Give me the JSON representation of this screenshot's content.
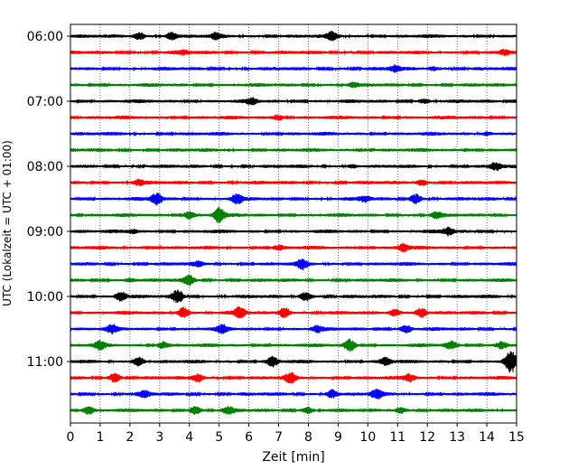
{
  "chart_data": {
    "type": "line",
    "title": "",
    "xlabel": "Zeit  [min]",
    "ylabel": "UTC (Lokalzeit = UTC + 01:00)",
    "xlim": [
      0,
      15
    ],
    "x_ticks": [
      "0",
      "1",
      "2",
      "3",
      "4",
      "5",
      "6",
      "7",
      "8",
      "9",
      "10",
      "11",
      "12",
      "13",
      "14",
      "15"
    ],
    "y_ticks": [
      "06:00",
      "07:00",
      "08:00",
      "09:00",
      "10:00",
      "11:00"
    ],
    "grid": "vertical dotted",
    "trace_interval_minutes": 15,
    "traces": [
      {
        "start": "06:00",
        "color": "#000000",
        "events": [
          {
            "t": 2.3,
            "a": 4
          },
          {
            "t": 3.4,
            "a": 4
          },
          {
            "t": 4.9,
            "a": 3
          },
          {
            "t": 8.8,
            "a": 4
          }
        ]
      },
      {
        "start": "06:15",
        "color": "#ff0000",
        "events": [
          {
            "t": 3.8,
            "a": 2
          },
          {
            "t": 14.6,
            "a": 3
          }
        ]
      },
      {
        "start": "06:30",
        "color": "#0000ff",
        "events": [
          {
            "t": 10.9,
            "a": 3
          },
          {
            "t": 12.2,
            "a": 2
          }
        ]
      },
      {
        "start": "06:45",
        "color": "#008000",
        "events": [
          {
            "t": 9.5,
            "a": 2
          }
        ]
      },
      {
        "start": "07:00",
        "color": "#000000",
        "events": [
          {
            "t": 6.1,
            "a": 3
          },
          {
            "t": 11.9,
            "a": 2
          }
        ]
      },
      {
        "start": "07:15",
        "color": "#ff0000",
        "events": [
          {
            "t": 7.0,
            "a": 3
          }
        ]
      },
      {
        "start": "07:30",
        "color": "#0000ff",
        "events": [
          {
            "t": 14.0,
            "a": 2
          }
        ]
      },
      {
        "start": "07:45",
        "color": "#008000",
        "events": []
      },
      {
        "start": "08:00",
        "color": "#000000",
        "events": [
          {
            "t": 14.3,
            "a": 4
          },
          {
            "t": 9.5,
            "a": 2
          }
        ]
      },
      {
        "start": "08:15",
        "color": "#ff0000",
        "events": [
          {
            "t": 2.3,
            "a": 3
          },
          {
            "t": 11.8,
            "a": 3
          }
        ]
      },
      {
        "start": "08:30",
        "color": "#0000ff",
        "events": [
          {
            "t": 2.9,
            "a": 6
          },
          {
            "t": 5.6,
            "a": 5
          },
          {
            "t": 11.6,
            "a": 5
          },
          {
            "t": 9.9,
            "a": 3
          }
        ]
      },
      {
        "start": "08:45",
        "color": "#008000",
        "events": [
          {
            "t": 4.0,
            "a": 4
          },
          {
            "t": 5.0,
            "a": 8
          },
          {
            "t": 12.3,
            "a": 3
          }
        ]
      },
      {
        "start": "09:00",
        "color": "#000000",
        "events": [
          {
            "t": 12.7,
            "a": 4
          },
          {
            "t": 2.1,
            "a": 2
          }
        ]
      },
      {
        "start": "09:15",
        "color": "#ff0000",
        "events": [
          {
            "t": 11.2,
            "a": 4
          },
          {
            "t": 7.0,
            "a": 2
          }
        ]
      },
      {
        "start": "09:30",
        "color": "#0000ff",
        "events": [
          {
            "t": 7.8,
            "a": 5
          },
          {
            "t": 4.3,
            "a": 2
          }
        ]
      },
      {
        "start": "09:45",
        "color": "#008000",
        "events": [
          {
            "t": 4.0,
            "a": 5
          },
          {
            "t": 2.0,
            "a": 2
          }
        ]
      },
      {
        "start": "10:00",
        "color": "#000000",
        "events": [
          {
            "t": 1.7,
            "a": 5
          },
          {
            "t": 3.6,
            "a": 7
          },
          {
            "t": 7.9,
            "a": 5
          }
        ]
      },
      {
        "start": "10:15",
        "color": "#ff0000",
        "events": [
          {
            "t": 3.8,
            "a": 6
          },
          {
            "t": 5.7,
            "a": 6
          },
          {
            "t": 7.2,
            "a": 6
          },
          {
            "t": 11.8,
            "a": 5
          },
          {
            "t": 10.9,
            "a": 4
          }
        ]
      },
      {
        "start": "10:30",
        "color": "#0000ff",
        "events": [
          {
            "t": 1.4,
            "a": 4
          },
          {
            "t": 5.1,
            "a": 4
          },
          {
            "t": 11.3,
            "a": 4
          },
          {
            "t": 8.3,
            "a": 3
          }
        ]
      },
      {
        "start": "10:45",
        "color": "#008000",
        "events": [
          {
            "t": 1.0,
            "a": 4
          },
          {
            "t": 3.1,
            "a": 4
          },
          {
            "t": 9.4,
            "a": 6
          },
          {
            "t": 12.8,
            "a": 4
          },
          {
            "t": 14.5,
            "a": 4
          }
        ]
      },
      {
        "start": "11:00",
        "color": "#000000",
        "events": [
          {
            "t": 2.3,
            "a": 5
          },
          {
            "t": 6.8,
            "a": 5
          },
          {
            "t": 10.6,
            "a": 4
          },
          {
            "t": 14.8,
            "a": 12
          }
        ]
      },
      {
        "start": "11:15",
        "color": "#ff0000",
        "events": [
          {
            "t": 1.5,
            "a": 5
          },
          {
            "t": 4.3,
            "a": 4
          },
          {
            "t": 7.4,
            "a": 5
          },
          {
            "t": 11.4,
            "a": 4
          }
        ]
      },
      {
        "start": "11:30",
        "color": "#0000ff",
        "events": [
          {
            "t": 8.8,
            "a": 5
          },
          {
            "t": 10.3,
            "a": 5
          },
          {
            "t": 2.5,
            "a": 3
          }
        ]
      },
      {
        "start": "11:45",
        "color": "#008000",
        "events": [
          {
            "t": 0.6,
            "a": 4
          },
          {
            "t": 4.2,
            "a": 4
          },
          {
            "t": 5.3,
            "a": 4
          },
          {
            "t": 8.0,
            "a": 3
          },
          {
            "t": 11.1,
            "a": 3
          }
        ]
      }
    ]
  }
}
